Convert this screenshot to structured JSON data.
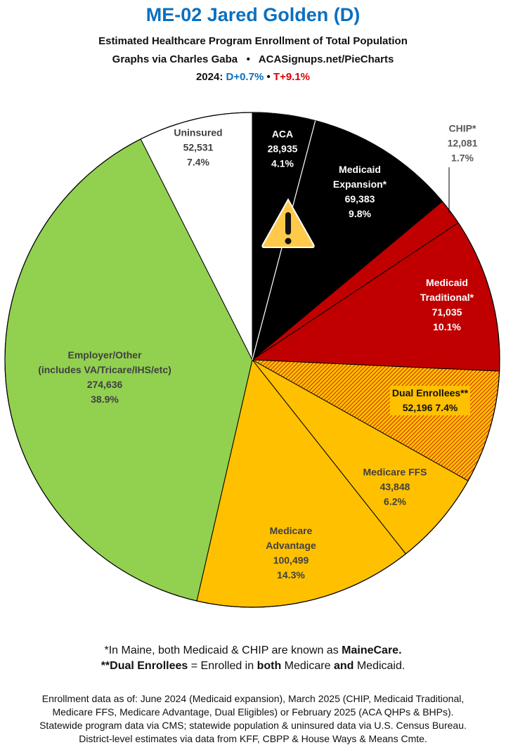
{
  "header": {
    "title": "ME-02 Jared Golden (D)",
    "subtitle": "Estimated Healthcare Program Enrollment of Total Population",
    "credit": "Graphs via Charles Gaba   •   ACASignups.net/PieCharts",
    "margin_prefix": "2024:",
    "margin_d": "D+0.7%",
    "margin_sep": "•",
    "margin_t": "T+9.1%"
  },
  "chart_data": {
    "type": "pie",
    "title": "ME-02 Jared Golden (D)",
    "start": "top",
    "direction": "clockwise",
    "slices": [
      {
        "label": "ACA",
        "value": 28935,
        "pct": "4.1%",
        "value_text": "28,935",
        "color": "#000000"
      },
      {
        "label": "Medicaid Expansion*",
        "value": 69383,
        "pct": "9.8%",
        "value_text": "69,383",
        "color": "#000000"
      },
      {
        "label": "CHIP*",
        "value": 12081,
        "pct": "1.7%",
        "value_text": "12,081",
        "color": "#c00000"
      },
      {
        "label": "Medicaid Traditional*",
        "value": 71035,
        "pct": "10.1%",
        "value_text": "71,035",
        "color": "#c00000"
      },
      {
        "label": "Dual Enrollees**",
        "value": 52196,
        "pct": "7.4%",
        "value_text": "52,196",
        "color": "#ffc000",
        "hatch": "#c00000"
      },
      {
        "label": "Medicare FFS",
        "value": 43848,
        "pct": "6.2%",
        "value_text": "43,848",
        "color": "#ffc000"
      },
      {
        "label": "Medicare Advantage",
        "value": 100499,
        "pct": "14.3%",
        "value_text": "100,499",
        "color": "#ffc000"
      },
      {
        "label": "Employer/Other (includes VA/Tricare/IHS/etc)",
        "value": 274636,
        "pct": "38.9%",
        "value_text": "274,636",
        "color": "#92d050"
      },
      {
        "label": "Uninsured",
        "value": 52531,
        "pct": "7.4%",
        "value_text": "52,531",
        "color": "#ffffff"
      }
    ],
    "annotation_icon": "warning-icon"
  },
  "labels": {
    "aca": [
      "ACA",
      "28,935",
      "4.1%"
    ],
    "expansion": [
      "Medicaid",
      "Expansion*",
      "69,383",
      "9.8%"
    ],
    "chip": [
      "CHIP*",
      "12,081",
      "1.7%"
    ],
    "traditional": [
      "Medicaid",
      "Traditional*",
      "71,035",
      "10.1%"
    ],
    "dual": [
      "Dual Enrollees**",
      "52,196 7.4%"
    ],
    "ffs": [
      "Medicare FFS",
      "43,848",
      "6.2%"
    ],
    "advantage": [
      "Medicare",
      "Advantage",
      "100,499",
      "14.3%"
    ],
    "employer": [
      "Employer/Other",
      "(includes VA/Tricare/IHS/etc)",
      "274,636",
      "38.9%"
    ],
    "uninsured": [
      "Uninsured",
      "52,531",
      "7.4%"
    ]
  },
  "notes": {
    "line1_a": "*In Maine, both Medicaid & CHIP are known as ",
    "line1_b": "MaineCare.",
    "line2_a": "**Dual Enrollees",
    "line2_b": " = Enrolled in ",
    "line2_c": "both",
    "line2_d": " Medicare ",
    "line2_e": "and",
    "line2_f": " Medicaid."
  },
  "sources": [
    "Enrollment data as of: June 2024 (Medicaid expansion), March 2025 (CHIP, Medicaid Traditional,",
    "Medicare FFS, Medicare Advantage, Dual Eligibles) or February 2025 (ACA QHPs & BHPs).",
    "Statewide program data via CMS; statewide population & uninsured data via U.S. Census Bureau.",
    "District-level estimates via data from KFF, CBPP & House Ways & Means Cmte."
  ]
}
